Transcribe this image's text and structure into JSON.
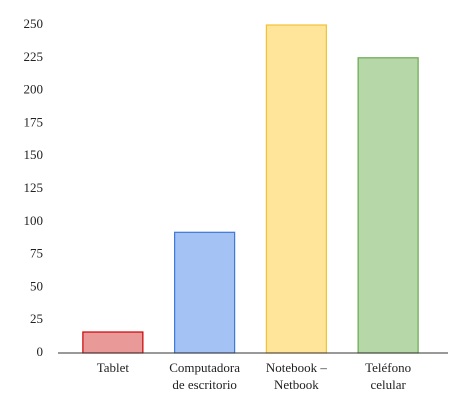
{
  "chart_data": {
    "type": "bar",
    "categories": [
      [
        "Tablet"
      ],
      [
        "Computadora",
        "de escritorio"
      ],
      [
        "Notebook –",
        "Netbook"
      ],
      [
        "Teléfono",
        "celular"
      ]
    ],
    "values": [
      16,
      92,
      250,
      225
    ],
    "colors": [
      "#ea9999",
      "#a4c2f4",
      "#ffe599",
      "#b6d7a8"
    ],
    "edge_colors": [
      "#cc0000",
      "#3c78d8",
      "#f1c232",
      "#6aa84f"
    ],
    "ylim": [
      0,
      250
    ],
    "yticks": [
      0,
      25,
      50,
      75,
      100,
      125,
      150,
      175,
      200,
      225,
      250
    ],
    "grid": false
  }
}
